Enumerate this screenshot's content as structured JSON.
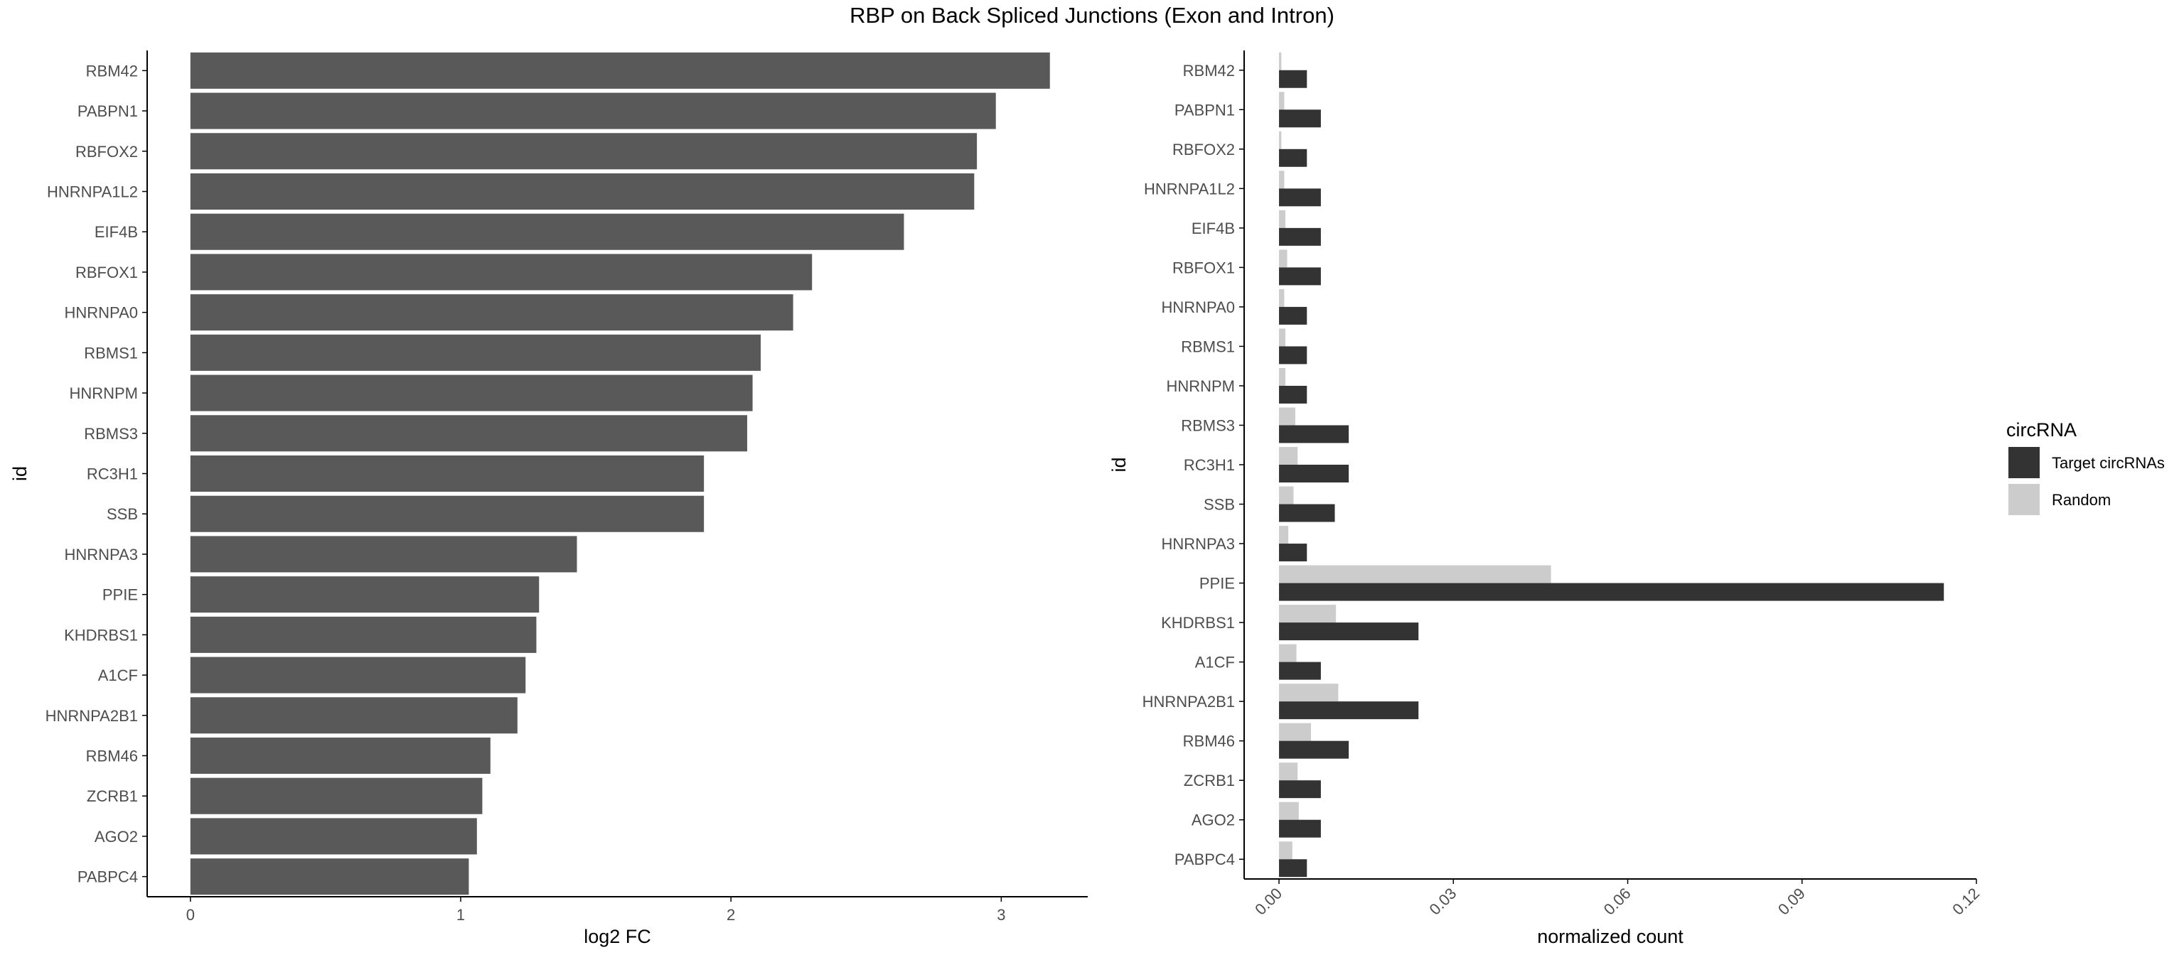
{
  "title": "RBP on Back Spliced Junctions (Exon and Intron)",
  "colors": {
    "fc_bar": "#595959",
    "target": "#333333",
    "random": "#cccccc",
    "axis": "#000000"
  },
  "chart_data": [
    {
      "type": "bar",
      "orientation": "horizontal",
      "xlabel": "log2 FC",
      "ylabel": "id",
      "xlim": [
        -0.16,
        3.32
      ],
      "xticks": [
        0,
        1,
        2,
        3
      ],
      "xtick_labels": [
        "0",
        "1",
        "2",
        "3"
      ],
      "categories": [
        "RBM42",
        "PABPN1",
        "RBFOX2",
        "HNRNPA1L2",
        "EIF4B",
        "RBFOX1",
        "HNRNPA0",
        "RBMS1",
        "HNRNPM",
        "RBMS3",
        "RC3H1",
        "SSB",
        "HNRNPA3",
        "PPIE",
        "KHDRBS1",
        "A1CF",
        "HNRNPA2B1",
        "RBM46",
        "ZCRB1",
        "AGO2",
        "PABPC4"
      ],
      "values": [
        3.18,
        2.98,
        2.91,
        2.9,
        2.64,
        2.3,
        2.23,
        2.11,
        2.08,
        2.06,
        1.9,
        1.9,
        1.43,
        1.29,
        1.28,
        1.24,
        1.21,
        1.11,
        1.08,
        1.06,
        1.03
      ],
      "grid": false
    },
    {
      "type": "bar",
      "orientation": "horizontal",
      "grouping": "dodge",
      "xlabel": "normalized count",
      "ylabel": "id",
      "xlim": [
        -0.006,
        0.12
      ],
      "xticks": [
        0,
        0.03,
        0.06,
        0.09,
        0.12
      ],
      "xtick_labels": [
        "0.00",
        "0.03",
        "0.06",
        "0.09",
        "0.12"
      ],
      "categories": [
        "RBM42",
        "PABPN1",
        "RBFOX2",
        "HNRNPA1L2",
        "EIF4B",
        "RBFOX1",
        "HNRNPA0",
        "RBMS1",
        "HNRNPM",
        "RBMS3",
        "RC3H1",
        "SSB",
        "HNRNPA3",
        "PPIE",
        "KHDRBS1",
        "A1CF",
        "HNRNPA2B1",
        "RBM46",
        "ZCRB1",
        "AGO2",
        "PABPC4"
      ],
      "legend_title": "circRNA",
      "legend_position": "right",
      "series": [
        {
          "name": "Target circRNAs",
          "color": "#333333",
          "values": [
            0.0048,
            0.0072,
            0.0048,
            0.0072,
            0.0072,
            0.0072,
            0.0048,
            0.0048,
            0.0048,
            0.012,
            0.012,
            0.0096,
            0.0048,
            0.1144,
            0.024,
            0.0072,
            0.024,
            0.012,
            0.0072,
            0.0072,
            0.0048
          ]
        },
        {
          "name": "Random",
          "color": "#cccccc",
          "values": [
            0.0004,
            0.0009,
            0.0004,
            0.0009,
            0.0011,
            0.0014,
            0.0009,
            0.0011,
            0.0011,
            0.0028,
            0.0032,
            0.0025,
            0.0016,
            0.0468,
            0.0098,
            0.003,
            0.0102,
            0.0055,
            0.0032,
            0.0034,
            0.0023
          ]
        }
      ],
      "grid": false
    }
  ]
}
